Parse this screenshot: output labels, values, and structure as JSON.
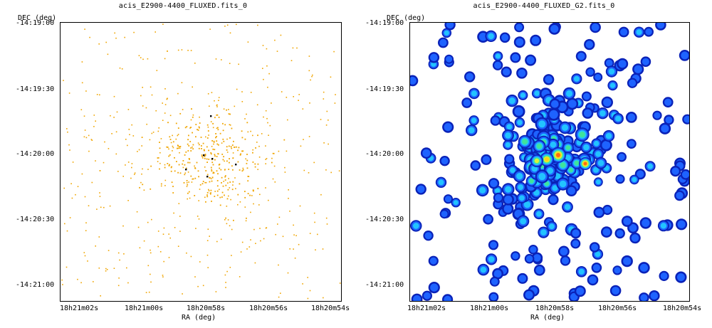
{
  "chart_data": [
    {
      "type": "scatter",
      "title": "acis_E2900-4400_FLUXED.fits_0",
      "xlabel": "RA (deg)",
      "ylabel": "DEC (deg)",
      "x_ticks": [
        "18h21m02s",
        "18h21m00s",
        "18h20m58s",
        "18h20m56s",
        "18h20m54s"
      ],
      "y_ticks": [
        "-14:19:00",
        "-14:19:30",
        "-14:20:00",
        "-14:20:30",
        "-14:21:00"
      ],
      "point_color": "#f0a500",
      "bright_color": "#000000",
      "center": {
        "ra": "18h20m58s",
        "dec": "-14:20:00"
      },
      "scale_arcsec": 30
    },
    {
      "type": "heatmap",
      "title": "acis_E2900-4400_FLUXED_G2.fits_0",
      "xlabel": "RA (deg)",
      "ylabel": "DEC (deg)",
      "x_ticks": [
        "18h21m02s",
        "18h21m00s",
        "18h20m58s",
        "18h20m56s",
        "18h20m54s"
      ],
      "y_ticks": [
        "-14:19:00",
        "-14:19:30",
        "-14:20:00",
        "-14:20:30",
        "-14:21:00"
      ],
      "colormap": [
        "#0a22b8",
        "#1e63ff",
        "#22c3ff",
        "#3fe39c",
        "#d7f23a",
        "#ffd21a",
        "#ff6a10",
        "#d40000"
      ],
      "smoothing": "Gaussian"
    }
  ]
}
